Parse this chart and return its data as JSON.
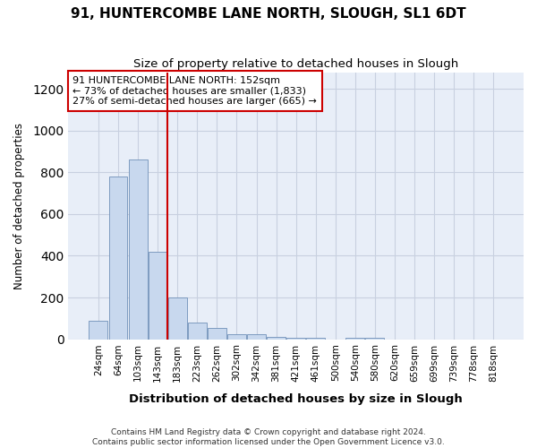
{
  "title": "91, HUNTERCOMBE LANE NORTH, SLOUGH, SL1 6DT",
  "subtitle": "Size of property relative to detached houses in Slough",
  "xlabel": "Distribution of detached houses by size in Slough",
  "ylabel": "Number of detached properties",
  "categories": [
    "24sqm",
    "64sqm",
    "103sqm",
    "143sqm",
    "183sqm",
    "223sqm",
    "262sqm",
    "302sqm",
    "342sqm",
    "381sqm",
    "421sqm",
    "461sqm",
    "500sqm",
    "540sqm",
    "580sqm",
    "620sqm",
    "659sqm",
    "699sqm",
    "739sqm",
    "778sqm",
    "818sqm"
  ],
  "values": [
    90,
    780,
    860,
    420,
    200,
    80,
    55,
    25,
    25,
    10,
    5,
    5,
    0,
    5,
    5,
    0,
    0,
    0,
    0,
    0,
    0
  ],
  "bar_color": "#c8d8ee",
  "bar_edge_color": "#7090b8",
  "grid_color": "#c8d0e0",
  "property_line_x": 3.5,
  "property_line_color": "#cc0000",
  "annotation_text": "91 HUNTERCOMBE LANE NORTH: 152sqm\n← 73% of detached houses are smaller (1,833)\n27% of semi-detached houses are larger (665) →",
  "annotation_box_color": "#ffffff",
  "annotation_box_edge": "#cc0000",
  "footnote": "Contains HM Land Registry data © Crown copyright and database right 2024.\nContains public sector information licensed under the Open Government Licence v3.0.",
  "ylim": [
    0,
    1280
  ],
  "yticks": [
    0,
    200,
    400,
    600,
    800,
    1000,
    1200
  ],
  "fig_background": "#ffffff",
  "plot_background": "#e8eef8"
}
